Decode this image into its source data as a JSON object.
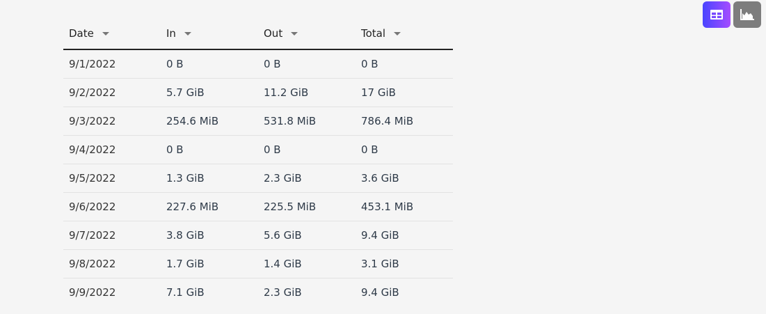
{
  "view_toggle": {
    "active": "table",
    "buttons": [
      {
        "name": "table-view",
        "icon": "table-icon"
      },
      {
        "name": "chart-view",
        "icon": "area-chart-icon"
      }
    ],
    "colors": {
      "active_start": "#4a45ff",
      "active_end": "#a54dff",
      "inactive": "#7d7d7d"
    }
  },
  "table": {
    "columns": [
      "Date",
      "In",
      "Out",
      "Total"
    ],
    "rows": [
      [
        "9/1/2022",
        "0 B",
        "0 B",
        "0 B"
      ],
      [
        "9/2/2022",
        "5.7 GiB",
        "11.2 GiB",
        "17 GiB"
      ],
      [
        "9/3/2022",
        "254.6 MiB",
        "531.8 MiB",
        "786.4 MiB"
      ],
      [
        "9/4/2022",
        "0 B",
        "0 B",
        "0 B"
      ],
      [
        "9/5/2022",
        "1.3 GiB",
        "2.3 GiB",
        "3.6 GiB"
      ],
      [
        "9/6/2022",
        "227.6 MiB",
        "225.5 MiB",
        "453.1 MiB"
      ],
      [
        "9/7/2022",
        "3.8 GiB",
        "5.6 GiB",
        "9.4 GiB"
      ],
      [
        "9/8/2022",
        "1.7 GiB",
        "1.4 GiB",
        "3.1 GiB"
      ],
      [
        "9/9/2022",
        "7.1 GiB",
        "2.3 GiB",
        "9.4 GiB"
      ]
    ]
  }
}
